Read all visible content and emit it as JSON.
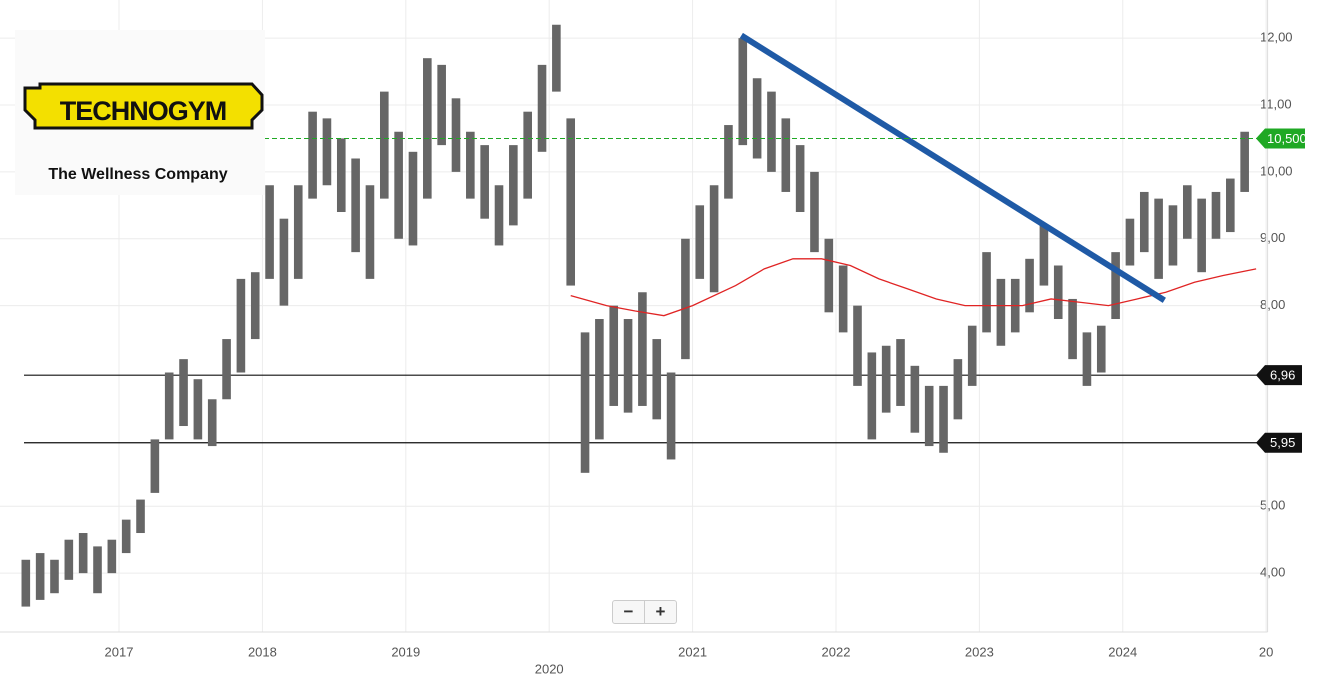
{
  "logo": {
    "brand": "TECHNOGYM",
    "tagline": "The Wellness Company"
  },
  "zoom": [
    "−",
    "+"
  ],
  "chart_data": {
    "type": "range-bar",
    "x": [
      2016.35,
      2016.45,
      2016.55,
      2016.65,
      2016.75,
      2016.85,
      2016.95,
      2017.05,
      2017.15,
      2017.25,
      2017.35,
      2017.45,
      2017.55,
      2017.65,
      2017.75,
      2017.85,
      2017.95,
      2018.05,
      2018.15,
      2018.25,
      2018.35,
      2018.45,
      2018.55,
      2018.65,
      2018.75,
      2018.85,
      2018.95,
      2019.05,
      2019.15,
      2019.25,
      2019.35,
      2019.45,
      2019.55,
      2019.65,
      2019.75,
      2019.85,
      2019.95,
      2020.05,
      2020.15,
      2020.25,
      2020.35,
      2020.45,
      2020.55,
      2020.65,
      2020.75,
      2020.85,
      2020.95,
      2021.05,
      2021.15,
      2021.25,
      2021.35,
      2021.45,
      2021.55,
      2021.65,
      2021.75,
      2021.85,
      2021.95,
      2022.05,
      2022.15,
      2022.25,
      2022.35,
      2022.45,
      2022.55,
      2022.65,
      2022.75,
      2022.85,
      2022.95,
      2023.05,
      2023.15,
      2023.25,
      2023.35,
      2023.45,
      2023.55,
      2023.65,
      2023.75,
      2023.85,
      2023.95,
      2024.05,
      2024.15,
      2024.25,
      2024.35,
      2024.45,
      2024.55,
      2024.65,
      2024.75,
      2024.85
    ],
    "high": [
      4.2,
      4.3,
      4.2,
      4.5,
      4.6,
      4.4,
      4.5,
      4.8,
      5.1,
      6.0,
      7.0,
      7.2,
      6.9,
      6.6,
      7.5,
      8.4,
      8.5,
      9.8,
      9.3,
      9.8,
      10.9,
      10.8,
      10.5,
      10.2,
      9.8,
      11.2,
      10.6,
      10.3,
      11.7,
      11.6,
      11.1,
      10.6,
      10.4,
      9.8,
      10.4,
      10.9,
      11.6,
      12.2,
      10.8,
      7.6,
      7.8,
      8.0,
      7.8,
      8.2,
      7.5,
      7.0,
      9.0,
      9.5,
      9.8,
      10.7,
      12.0,
      11.4,
      11.2,
      10.8,
      10.4,
      10.0,
      9.0,
      8.6,
      8.0,
      7.3,
      7.4,
      7.5,
      7.1,
      6.8,
      6.8,
      7.2,
      7.7,
      8.8,
      8.4,
      8.4,
      8.7,
      9.2,
      8.6,
      8.1,
      7.6,
      7.7,
      8.8,
      9.3,
      9.7,
      9.6,
      9.5,
      9.8,
      9.6,
      9.7,
      9.9,
      10.6
    ],
    "low": [
      3.5,
      3.6,
      3.7,
      3.9,
      4.0,
      3.7,
      4.0,
      4.3,
      4.6,
      5.2,
      6.0,
      6.2,
      6.0,
      5.9,
      6.6,
      7.0,
      7.5,
      8.4,
      8.0,
      8.4,
      9.6,
      9.8,
      9.4,
      8.8,
      8.4,
      9.6,
      9.0,
      8.9,
      9.6,
      10.4,
      10.0,
      9.6,
      9.3,
      8.9,
      9.2,
      9.6,
      10.3,
      11.2,
      8.3,
      5.5,
      6.0,
      6.5,
      6.4,
      6.5,
      6.3,
      5.7,
      7.2,
      8.4,
      8.2,
      9.6,
      10.4,
      10.2,
      10.0,
      9.7,
      9.4,
      8.8,
      7.9,
      7.6,
      6.8,
      6.0,
      6.4,
      6.5,
      6.1,
      5.9,
      5.8,
      6.3,
      6.8,
      7.6,
      7.4,
      7.6,
      7.9,
      8.3,
      7.8,
      7.2,
      6.8,
      7.0,
      7.8,
      8.6,
      8.8,
      8.4,
      8.6,
      9.0,
      8.5,
      9.0,
      9.1,
      9.7
    ],
    "color": "#666666",
    "moving_average": {
      "color": "#e02424",
      "x": [
        2020.15,
        2020.4,
        2020.6,
        2020.8,
        2021.0,
        2021.3,
        2021.5,
        2021.7,
        2021.9,
        2022.1,
        2022.3,
        2022.5,
        2022.7,
        2022.9,
        2023.1,
        2023.3,
        2023.5,
        2023.7,
        2023.9,
        2024.1,
        2024.3,
        2024.5,
        2024.7,
        2024.93
      ],
      "values": [
        8.15,
        8.0,
        7.92,
        7.85,
        8.0,
        8.3,
        8.55,
        8.7,
        8.7,
        8.6,
        8.4,
        8.25,
        8.1,
        8.0,
        8.0,
        8.0,
        8.1,
        8.05,
        8.0,
        8.1,
        8.2,
        8.35,
        8.45,
        8.55
      ]
    },
    "trendline": {
      "color": "#1f5aa6",
      "x": [
        2021.34,
        2024.29
      ],
      "values": [
        12.04,
        8.08
      ]
    },
    "levels": [
      {
        "value": 6.96,
        "label": "6,96"
      },
      {
        "value": 5.95,
        "label": "5,95"
      }
    ],
    "last_price": {
      "value": 10.5,
      "label": "10,500",
      "color": "#1fa824"
    },
    "xlim": [
      2016.17,
      2025.01
    ],
    "ylim": [
      3.12,
      12.57
    ],
    "xticks": [
      2017,
      2018,
      2019,
      2020,
      2021,
      2022,
      2023,
      2024,
      {
        "value": 2025,
        "label": "20"
      }
    ],
    "yticks": [
      {
        "value": 4,
        "label": "4,00"
      },
      {
        "value": 5,
        "label": "5,00"
      },
      {
        "value": 8,
        "label": "8,00"
      },
      {
        "value": 9,
        "label": "9,00"
      },
      {
        "value": 10,
        "label": "10,00"
      },
      {
        "value": 11,
        "label": "11,00"
      },
      {
        "value": 12,
        "label": "12,00"
      }
    ],
    "grid": true
  }
}
